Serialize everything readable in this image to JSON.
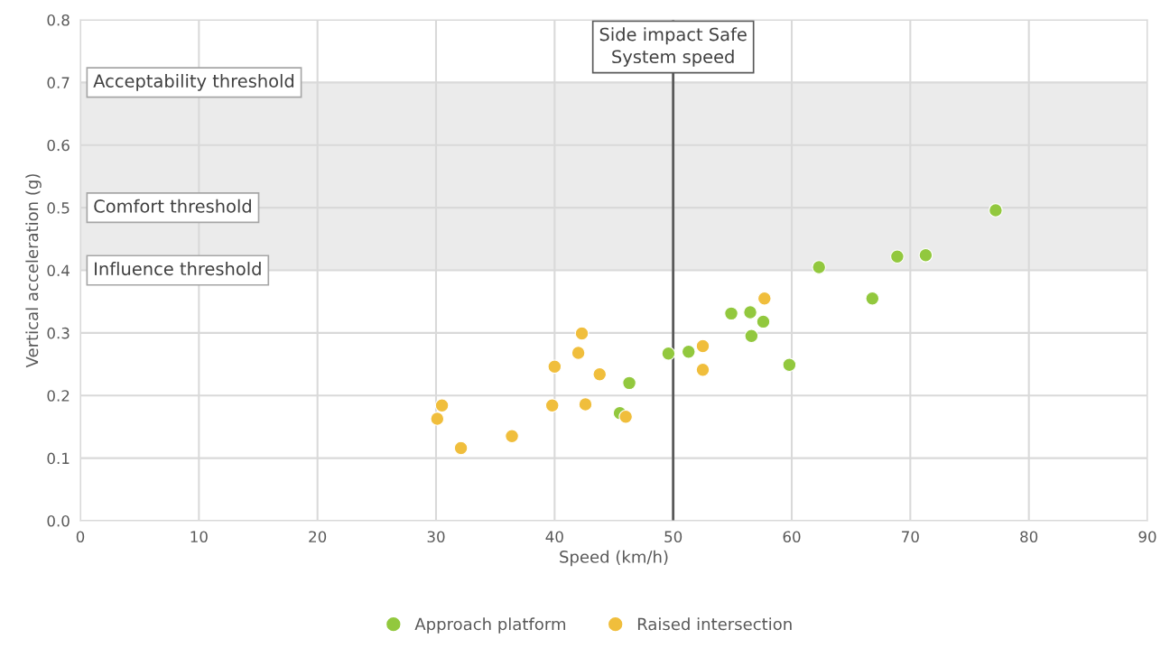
{
  "chart_data": {
    "type": "scatter",
    "xlabel": "Speed (km/h)",
    "ylabel": "Vertical acceleration (g)",
    "xlim": [
      0,
      90
    ],
    "xticks": [
      0,
      10,
      20,
      30,
      40,
      50,
      60,
      70,
      80,
      90
    ],
    "ylim": [
      0,
      0.8
    ],
    "yticks": [
      {
        "value": 0,
        "label": "0.0"
      },
      {
        "value": 0.1,
        "label": "0.1"
      },
      {
        "value": 0.2,
        "label": "0.2"
      },
      {
        "value": 0.3,
        "label": "0.3"
      },
      {
        "value": 0.4,
        "label": "0.4"
      },
      {
        "value": 0.5,
        "label": "0.5"
      },
      {
        "value": 0.6,
        "label": "0.6"
      },
      {
        "value": 0.7,
        "label": "0.7"
      },
      {
        "value": 0.8,
        "label": "0.8"
      }
    ],
    "grid": true,
    "legend": "bottom",
    "marker": "circle",
    "series": [
      {
        "name": "Approach platform",
        "color": "#92c83e",
        "x": [
          45.5,
          46.3,
          49.6,
          51.3,
          54.9,
          56.5,
          56.6,
          57.6,
          59.8,
          62.3,
          66.8,
          68.9,
          71.3,
          77.2
        ],
        "values": [
          0.172,
          0.22,
          0.267,
          0.27,
          0.331,
          0.333,
          0.295,
          0.318,
          0.249,
          0.405,
          0.355,
          0.422,
          0.424,
          0.496
        ]
      },
      {
        "name": "Raised intersection",
        "color": "#f0be3c",
        "x": [
          30.1,
          30.5,
          32.1,
          36.4,
          39.8,
          40.0,
          42.0,
          42.3,
          42.6,
          43.8,
          46.0,
          52.5,
          52.5,
          57.7
        ],
        "values": [
          0.163,
          0.184,
          0.116,
          0.135,
          0.184,
          0.246,
          0.268,
          0.299,
          0.186,
          0.234,
          0.166,
          0.279,
          0.241,
          0.355
        ]
      }
    ],
    "bands": [
      {
        "axis": "y",
        "from": 0.4,
        "to": 0.5,
        "color": "#ebebeb"
      },
      {
        "axis": "y",
        "from": 0.5,
        "to": 0.7,
        "color": "#ebebeb"
      }
    ],
    "ref_lines": [
      {
        "axis": "x",
        "value": 50,
        "label": "Side impact Safe\nSystem speed",
        "color": "#595959"
      }
    ],
    "annotations": [
      {
        "text": "Acceptability threshold",
        "y": 0.7
      },
      {
        "text": "Comfort threshold",
        "y": 0.5
      },
      {
        "text": "Influence threshold",
        "y": 0.4
      }
    ]
  }
}
